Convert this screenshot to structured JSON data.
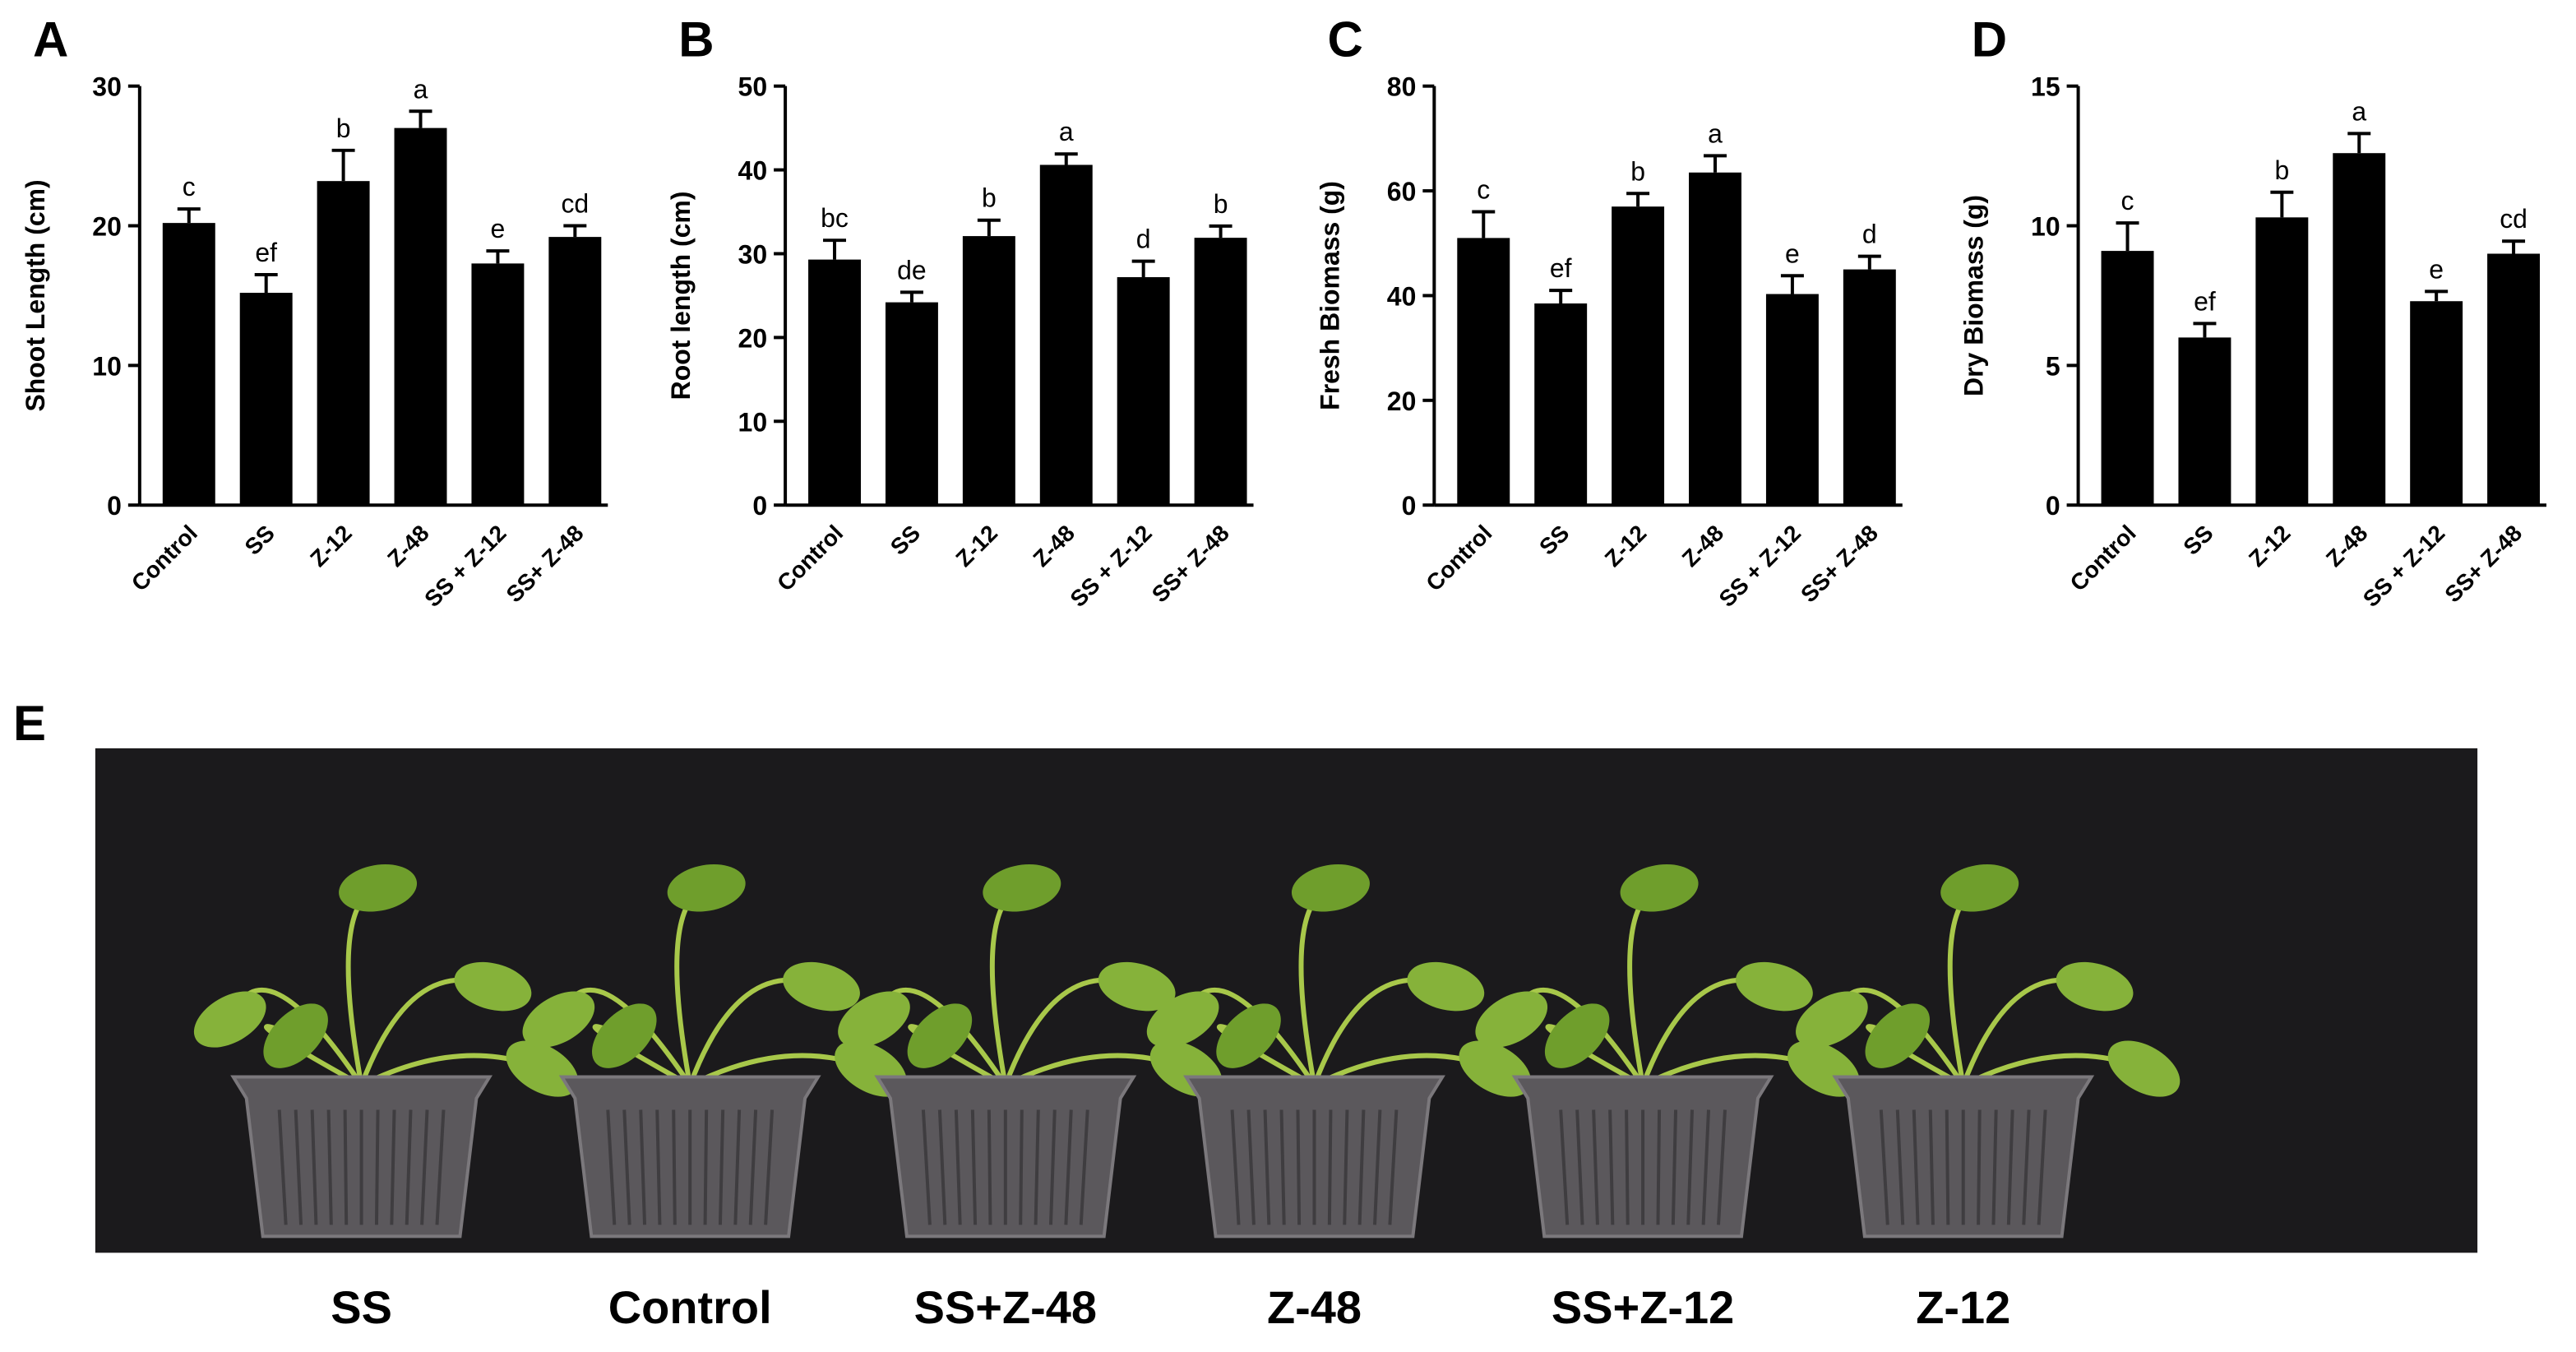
{
  "chart_data": [
    {
      "type": "bar",
      "panel": "A",
      "y_label": "Shoot Length (cm)",
      "categories": [
        "Control",
        "SS",
        "Z-12",
        "Z-48",
        "SS + Z-12",
        "SS+ Z-48"
      ],
      "values": [
        20.2,
        15.2,
        23.2,
        27.0,
        17.3,
        19.2
      ],
      "errors": [
        1.0,
        1.3,
        2.2,
        1.2,
        0.9,
        0.8
      ],
      "annotations": [
        "c",
        "ef",
        "b",
        "a",
        "e",
        "cd"
      ],
      "color": "#000000",
      "ylim": [
        0,
        30
      ],
      "yticks": [
        0,
        10,
        20,
        30
      ]
    },
    {
      "type": "bar",
      "panel": "B",
      "y_label": "Root length (cm)",
      "categories": [
        "Control",
        "SS",
        "Z-12",
        "Z-48",
        "SS + Z-12",
        "SS+ Z-48"
      ],
      "values": [
        29.3,
        24.2,
        32.1,
        40.6,
        27.2,
        31.9
      ],
      "errors": [
        2.3,
        1.2,
        1.9,
        1.3,
        1.9,
        1.4
      ],
      "annotations": [
        "bc",
        "de",
        "b",
        "a",
        "d",
        "b"
      ],
      "color": "#000000",
      "ylim": [
        0,
        50
      ],
      "yticks": [
        0,
        10,
        20,
        30,
        40,
        50
      ]
    },
    {
      "type": "bar",
      "panel": "C",
      "y_label": "Fresh Biomass (g)",
      "categories": [
        "Control",
        "SS",
        "Z-12",
        "Z-48",
        "SS + Z-12",
        "SS+ Z-48"
      ],
      "values": [
        51.0,
        38.5,
        57.0,
        63.5,
        40.3,
        45.0
      ],
      "errors": [
        5.0,
        2.5,
        2.5,
        3.2,
        3.5,
        2.5
      ],
      "annotations": [
        "c",
        "ef",
        "b",
        "a",
        "e",
        "d"
      ],
      "color": "#000000",
      "ylim": [
        0,
        80
      ],
      "yticks": [
        0,
        20,
        40,
        60,
        80
      ]
    },
    {
      "type": "bar",
      "panel": "D",
      "y_label": "Dry Biomass (g)",
      "categories": [
        "Control",
        "SS",
        "Z-12",
        "Z-48",
        "SS + Z-12",
        "SS+ Z-48"
      ],
      "values": [
        9.1,
        6.0,
        10.3,
        12.6,
        7.3,
        9.0
      ],
      "errors": [
        1.0,
        0.5,
        0.9,
        0.7,
        0.35,
        0.45
      ],
      "annotations": [
        "c",
        "ef",
        "b",
        "a",
        "e",
        "cd"
      ],
      "color": "#000000",
      "ylim": [
        0,
        15
      ],
      "yticks": [
        0,
        5,
        10,
        15
      ]
    }
  ],
  "photo": {
    "panel": "E",
    "labels": [
      "SS",
      "Control",
      "SS+Z-48",
      "Z-48",
      "SS+Z-12",
      "Z-12"
    ]
  }
}
